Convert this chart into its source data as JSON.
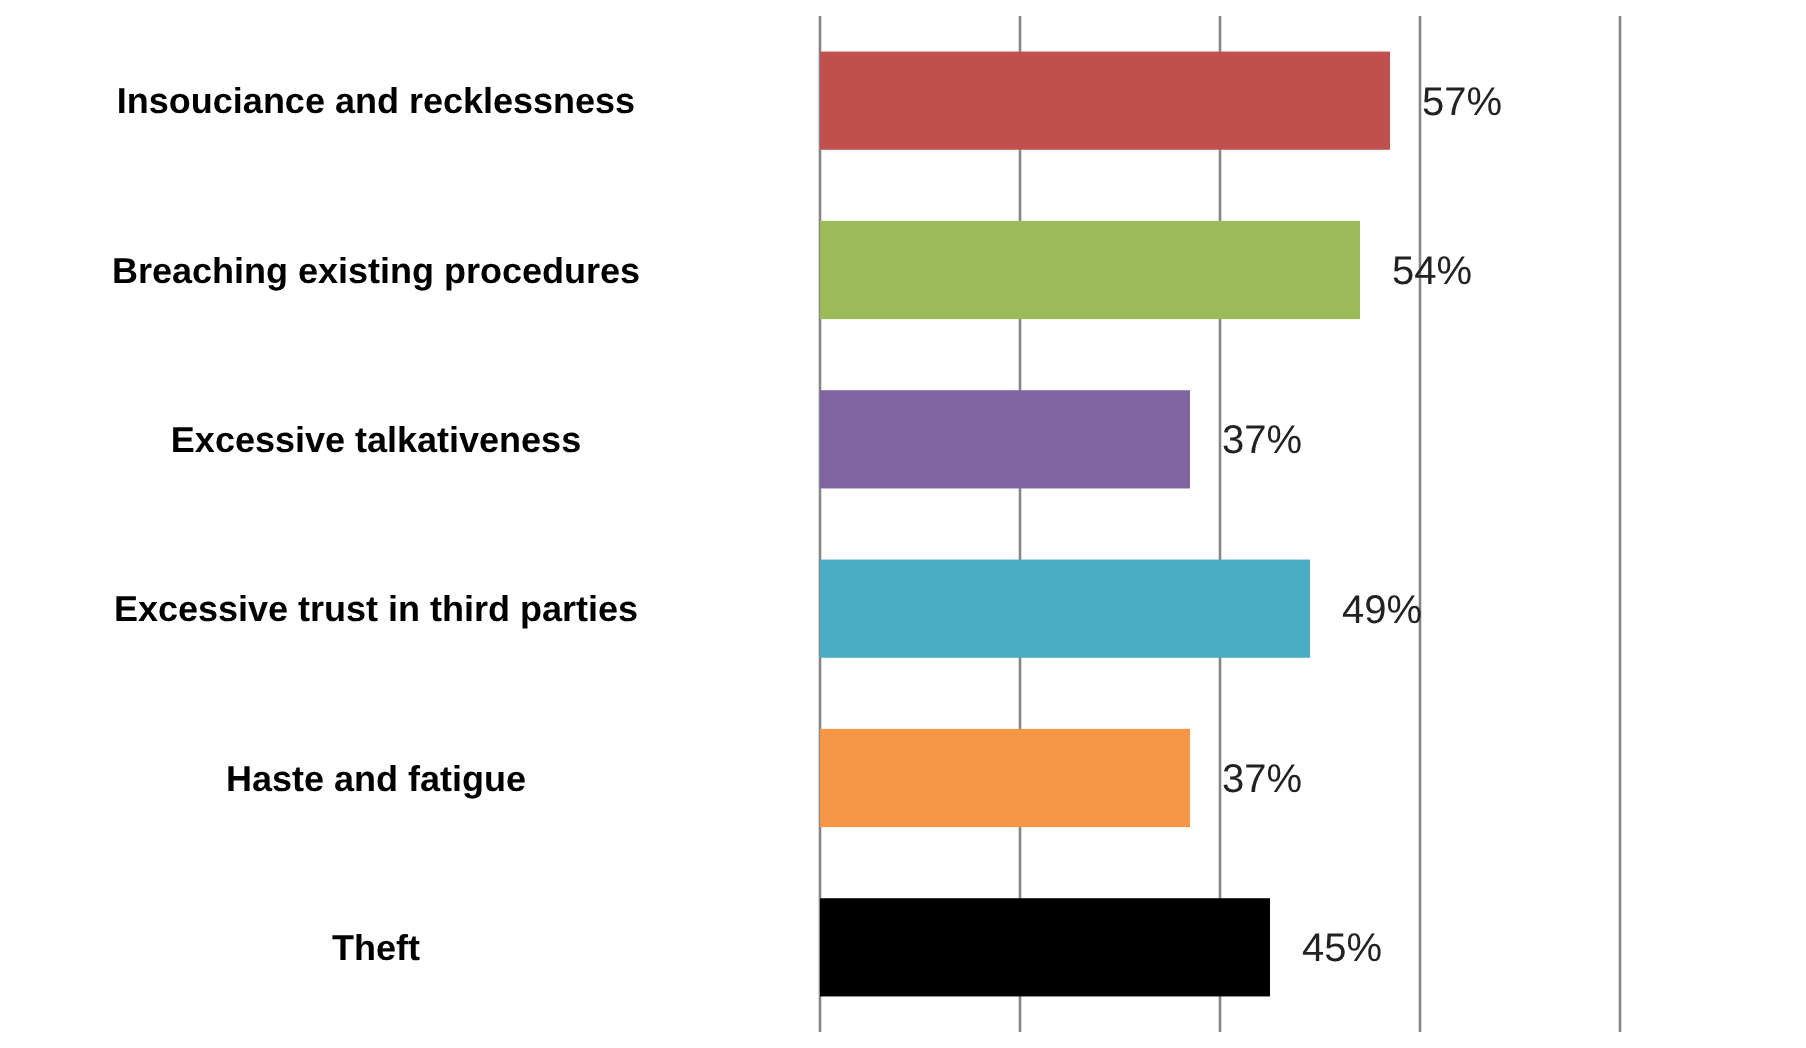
{
  "chart_data": {
    "type": "bar",
    "orientation": "horizontal",
    "categories": [
      "Insouciance and recklessness",
      "Breaching existing procedures",
      "Excessive talkativeness",
      "Excessive trust in third parties",
      "Haste and fatigue",
      "Theft"
    ],
    "values": [
      57,
      54,
      37,
      49,
      37,
      45
    ],
    "colors": [
      "#c0504d",
      "#9bbb59",
      "#8064a2",
      "#4bacc6",
      "#f79646",
      "#000000"
    ],
    "value_labels": [
      "57%",
      "54%",
      "37%",
      "49%",
      "37%",
      "45%"
    ],
    "xlim": [
      0,
      80
    ],
    "xticks": [
      {
        "value": 0,
        "label": null
      },
      {
        "value": 20,
        "label": null
      },
      {
        "value": 40,
        "label": null
      },
      {
        "value": 60,
        "label": null
      },
      {
        "value": 80,
        "label": null
      }
    ],
    "tick_labels": "y",
    "grid": "x"
  }
}
